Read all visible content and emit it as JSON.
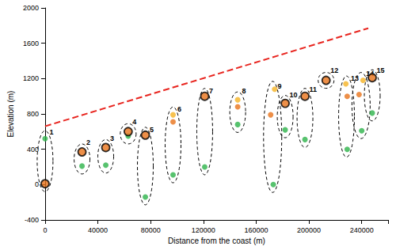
{
  "chart_data": {
    "type": "scatter",
    "x_label": "Distance from the coast (m)",
    "y_label": "Elevation (m)",
    "xlim": [
      0,
      260000
    ],
    "xticks": [
      0,
      40000,
      80000,
      120000,
      160000,
      200000,
      240000
    ],
    "ylim": [
      -400,
      2000
    ],
    "yticks": [
      -400,
      0,
      400,
      800,
      1200,
      1600,
      2000
    ],
    "grid": false,
    "series": [
      {
        "type": "line",
        "color": "#e8251f",
        "line_style": "dashed",
        "x": [
          0,
          245000
        ],
        "values": [
          660,
          1770
        ]
      },
      {
        "type": "scatter",
        "color": "#2db34a",
        "marker": "circle",
        "x": [
          0,
          28000,
          46000,
          63000,
          76000,
          97000,
          121000,
          146000,
          173000,
          182000,
          197000,
          229000,
          240000,
          248000
        ],
        "values": [
          520,
          210,
          220,
          550,
          -140,
          110,
          200,
          680,
          0,
          620,
          510,
          400,
          610,
          810
        ]
      },
      {
        "type": "scatter",
        "color": "#e8731a",
        "marker": "circle",
        "x": [
          97000,
          146000,
          171000,
          229000,
          238000
        ],
        "values": [
          710,
          880,
          790,
          1000,
          1020
        ]
      },
      {
        "type": "scatter",
        "color": "#f5b324",
        "marker": "circle",
        "x": [
          97000,
          146000,
          174000,
          228000,
          241000
        ],
        "values": [
          790,
          960,
          1080,
          1140,
          1180
        ]
      },
      {
        "type": "scatter",
        "color": "#e8731a",
        "marker": "ringed",
        "x": [
          0,
          28000,
          46000,
          63000,
          76000,
          121000,
          182000,
          197000,
          213000,
          248000
        ],
        "values": [
          10,
          370,
          420,
          600,
          560,
          1000,
          920,
          1000,
          1180,
          1210
        ]
      }
    ],
    "annotations": [
      {
        "text": "1",
        "x": 0
      },
      {
        "text": "2",
        "x": 28000
      },
      {
        "text": "3",
        "x": 46000
      },
      {
        "text": "4",
        "x": 63000
      },
      {
        "text": "5",
        "x": 76000
      },
      {
        "text": "6",
        "x": 97000
      },
      {
        "text": "7",
        "x": 121000
      },
      {
        "text": "8",
        "x": 146000
      },
      {
        "text": "9",
        "x": 173000
      },
      {
        "text": "10",
        "x": 182000
      },
      {
        "text": "11",
        "x": 197000
      },
      {
        "text": "12",
        "x": 213000
      },
      {
        "text": "13",
        "x": 229000
      },
      {
        "text": "14",
        "x": 240000
      },
      {
        "text": "15",
        "x": 248000
      }
    ]
  }
}
